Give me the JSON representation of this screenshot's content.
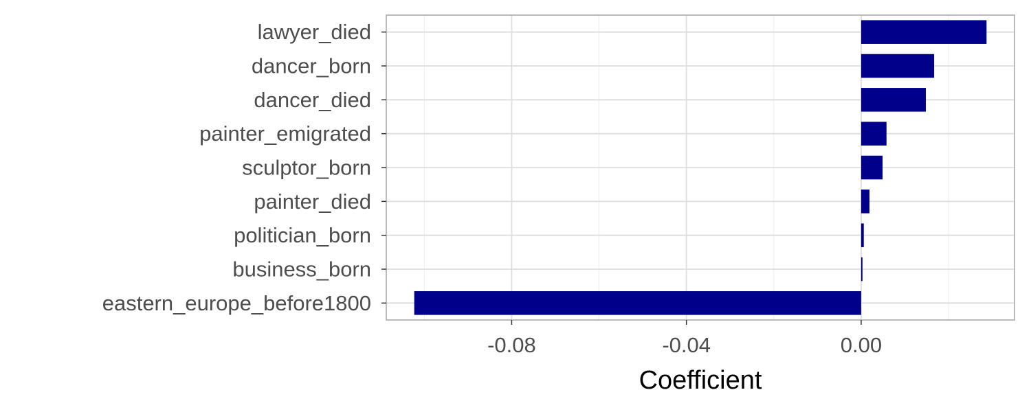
{
  "chart_data": {
    "type": "bar",
    "orientation": "horizontal",
    "categories": [
      "lawyer_died",
      "dancer_born",
      "dancer_died",
      "painter_emigrated",
      "sculptor_born",
      "painter_died",
      "politician_born",
      "business_born",
      "eastern_europe_before1800"
    ],
    "values": [
      0.0287,
      0.0167,
      0.0148,
      0.0058,
      0.0049,
      0.0019,
      0.0006,
      0.0003,
      -0.1023
    ],
    "xlabel": "Coefficient",
    "ylabel": "",
    "xlim": [
      -0.1087,
      0.0351
    ],
    "x_ticks": [
      -0.08,
      -0.04,
      0.0
    ],
    "x_tick_labels": [
      "-0.08",
      "-0.04",
      "0.00"
    ],
    "bar_color": "#00008b",
    "grid": true,
    "legend": "none"
  }
}
